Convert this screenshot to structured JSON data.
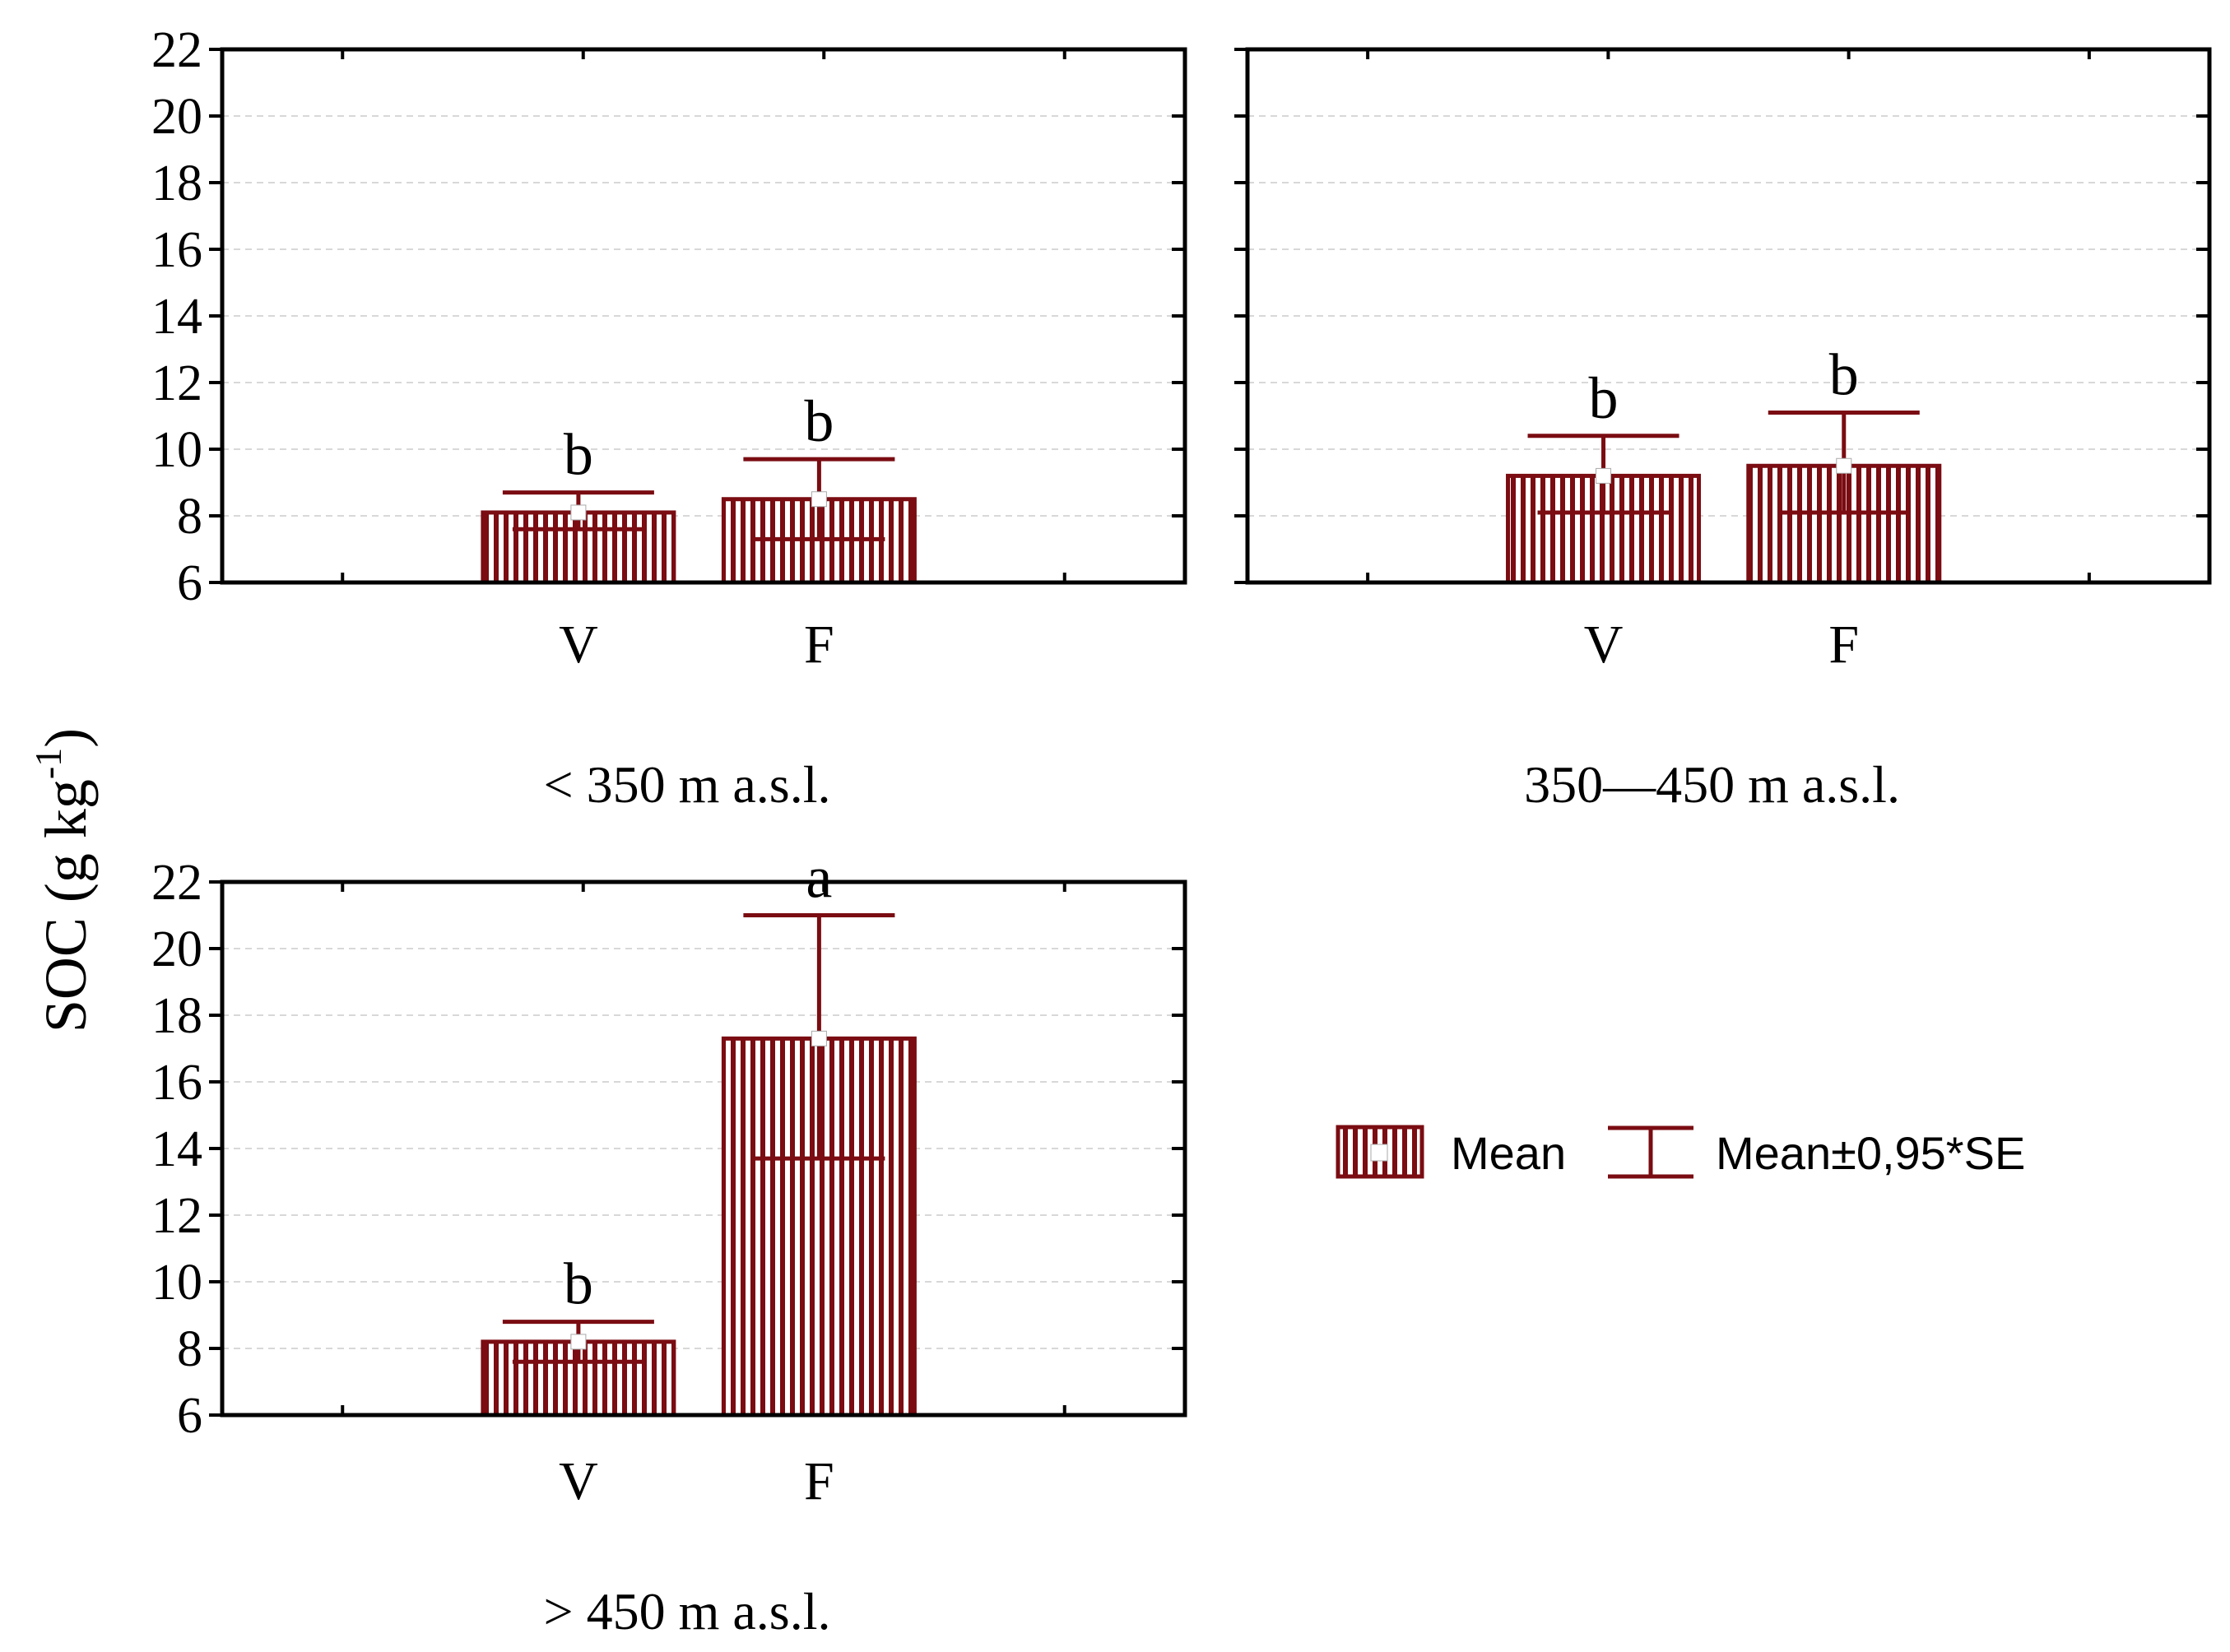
{
  "colors": {
    "bar": "#7a0c12",
    "axis": "#000000",
    "grid": "#d8d8d8",
    "marker": "#ffffff"
  },
  "y_axis_label": "SOC (g kg",
  "y_axis_label_sup": "-1",
  "y_axis_label_close": ")",
  "legend": {
    "mean_label": "Mean",
    "se_label": "Mean±0,95*SE"
  },
  "chart_data": [
    {
      "type": "bar",
      "title": "< 350 m a.s.l.",
      "categories": [
        "V",
        "F"
      ],
      "values": [
        8.1,
        8.5
      ],
      "err_high": [
        8.7,
        9.7
      ],
      "err_low": [
        7.6,
        7.3
      ],
      "significance": [
        "b",
        "b"
      ],
      "ylim": [
        6,
        22
      ],
      "yticks": [
        "6",
        "8",
        "10",
        "12",
        "14",
        "16",
        "18",
        "20",
        "22"
      ],
      "grid": true
    },
    {
      "type": "bar",
      "title": "350—450 m a.s.l.",
      "categories": [
        "V",
        "F"
      ],
      "values": [
        9.2,
        9.5
      ],
      "err_high": [
        10.4,
        11.1
      ],
      "err_low": [
        8.1,
        8.1
      ],
      "significance": [
        "b",
        "b"
      ],
      "ylim": [
        6,
        22
      ],
      "yticks": [],
      "grid": true
    },
    {
      "type": "bar",
      "title": "> 450 m a.s.l.",
      "categories": [
        "V",
        "F"
      ],
      "values": [
        8.2,
        17.3
      ],
      "err_high": [
        8.8,
        21.0
      ],
      "err_low": [
        7.6,
        13.7
      ],
      "significance": [
        "b",
        "a"
      ],
      "ylim": [
        6,
        22
      ],
      "yticks": [
        "6",
        "8",
        "10",
        "12",
        "14",
        "16",
        "18",
        "20",
        "22"
      ],
      "grid": true
    }
  ]
}
